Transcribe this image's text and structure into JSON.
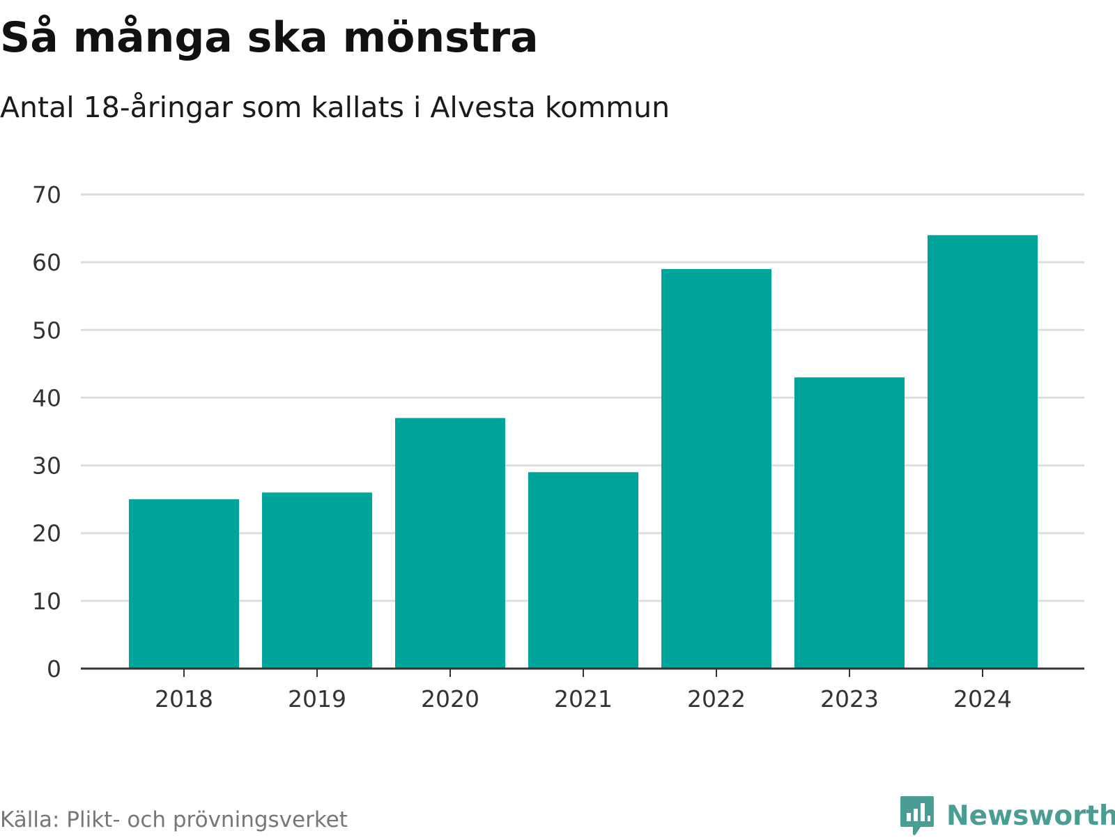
{
  "header": {
    "title": "Så många ska mönstra",
    "subtitle": "Antal 18-åringar som kallats i Alvesta kommun"
  },
  "footer": {
    "source": "Källa: Plikt- och prövningsverket",
    "brand": "Newsworthy",
    "brand_icon": "bar-chart-speech-bubble-icon"
  },
  "colors": {
    "bar": "#00a49a",
    "grid": "#dddddd",
    "axis": "#333333",
    "brand": "#4a9d93"
  },
  "chart_data": {
    "type": "bar",
    "title": "Så många ska mönstra",
    "subtitle": "Antal 18-åringar som kallats i Alvesta kommun",
    "categories": [
      "2018",
      "2019",
      "2020",
      "2021",
      "2022",
      "2023",
      "2024"
    ],
    "values": [
      25,
      26,
      37,
      29,
      59,
      43,
      64
    ],
    "xlabel": "",
    "ylabel": "",
    "ylim": [
      0,
      70
    ],
    "yticks": [
      "0",
      "10",
      "20",
      "30",
      "40",
      "50",
      "60",
      "70"
    ],
    "grid": true,
    "legend": "none"
  }
}
